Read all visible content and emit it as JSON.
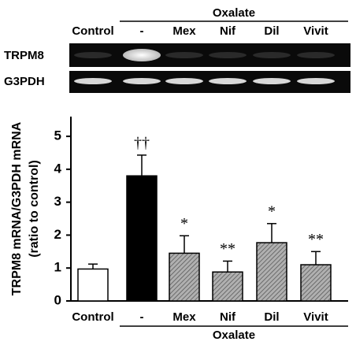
{
  "gel": {
    "group_label": "Oxalate",
    "lanes": [
      "Control",
      "-",
      "Mex",
      "Nif",
      "Dil",
      "Vivit"
    ],
    "rows": [
      "TRPM8",
      "G3PDH"
    ]
  },
  "chart_data": {
    "type": "bar",
    "y_label": "TRPM8 mRNA/G3PDH mRNA",
    "y_label_2": "(ratio to control)",
    "categories": [
      "Control",
      "-",
      "Mex",
      "Nif",
      "Dil",
      "Vivit"
    ],
    "group_label": "Oxalate",
    "values": [
      0.97,
      3.8,
      1.45,
      0.88,
      1.77,
      1.1
    ],
    "errors": [
      0.15,
      0.63,
      0.53,
      0.33,
      0.58,
      0.4
    ],
    "colors": [
      "#ffffff",
      "#000000",
      "#a0a0a0",
      "#a0a0a0",
      "#a0a0a0",
      "#a0a0a0"
    ],
    "hatch": [
      false,
      false,
      true,
      true,
      true,
      true
    ],
    "annotations": [
      null,
      "††",
      "*",
      "**",
      "*",
      "**"
    ],
    "ylim": [
      0,
      5.6
    ],
    "yticks": [
      0,
      1,
      2,
      3,
      4,
      5
    ]
  }
}
